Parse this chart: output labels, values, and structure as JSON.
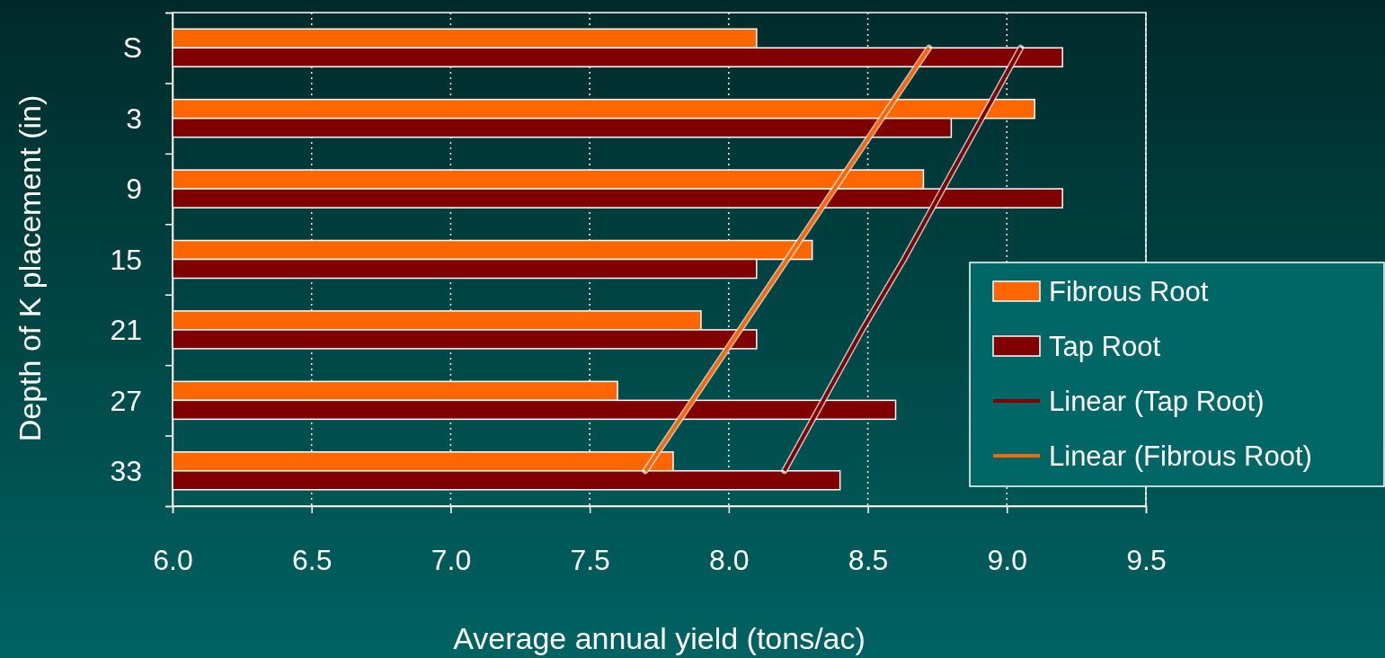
{
  "chart_data": {
    "type": "bar",
    "orientation": "horizontal",
    "xlabel": "Average annual yield (tons/ac)",
    "ylabel": "Depth of K placement (in)",
    "categories": [
      "S",
      "3",
      "9",
      "15",
      "21",
      "27",
      "33"
    ],
    "series": [
      {
        "name": "Fibrous Root",
        "color": "#ff6600",
        "values": [
          8.1,
          9.1,
          8.7,
          8.3,
          7.9,
          7.6,
          7.8
        ]
      },
      {
        "name": "Tap Root",
        "color": "#800000",
        "values": [
          9.2,
          8.8,
          9.2,
          8.1,
          8.1,
          8.6,
          8.4
        ]
      },
      {
        "name": "Linear (Tap Root)",
        "type": "line",
        "color": "#800000",
        "values": [
          9.05,
          8.91,
          8.77,
          8.63,
          8.48,
          8.34,
          8.2
        ]
      },
      {
        "name": "Linear (Fibrous Root)",
        "type": "line",
        "color": "#ff6600",
        "values": [
          8.72,
          8.55,
          8.38,
          8.21,
          8.04,
          7.87,
          7.7
        ]
      }
    ],
    "xlim": [
      6.0,
      9.5
    ],
    "xticks": [
      {
        "value": 6,
        "label": "6.0"
      },
      {
        "value": 6.5,
        "label": "6.5"
      },
      {
        "value": 7,
        "label": "7.0"
      },
      {
        "value": 7.5,
        "label": "7.5"
      },
      {
        "value": 8,
        "label": "8.0"
      },
      {
        "value": 8.5,
        "label": "8.5"
      },
      {
        "value": 9,
        "label": "9.0"
      },
      {
        "value": 9.5,
        "label": "9.5"
      }
    ],
    "grid": "x",
    "legend": "right"
  }
}
